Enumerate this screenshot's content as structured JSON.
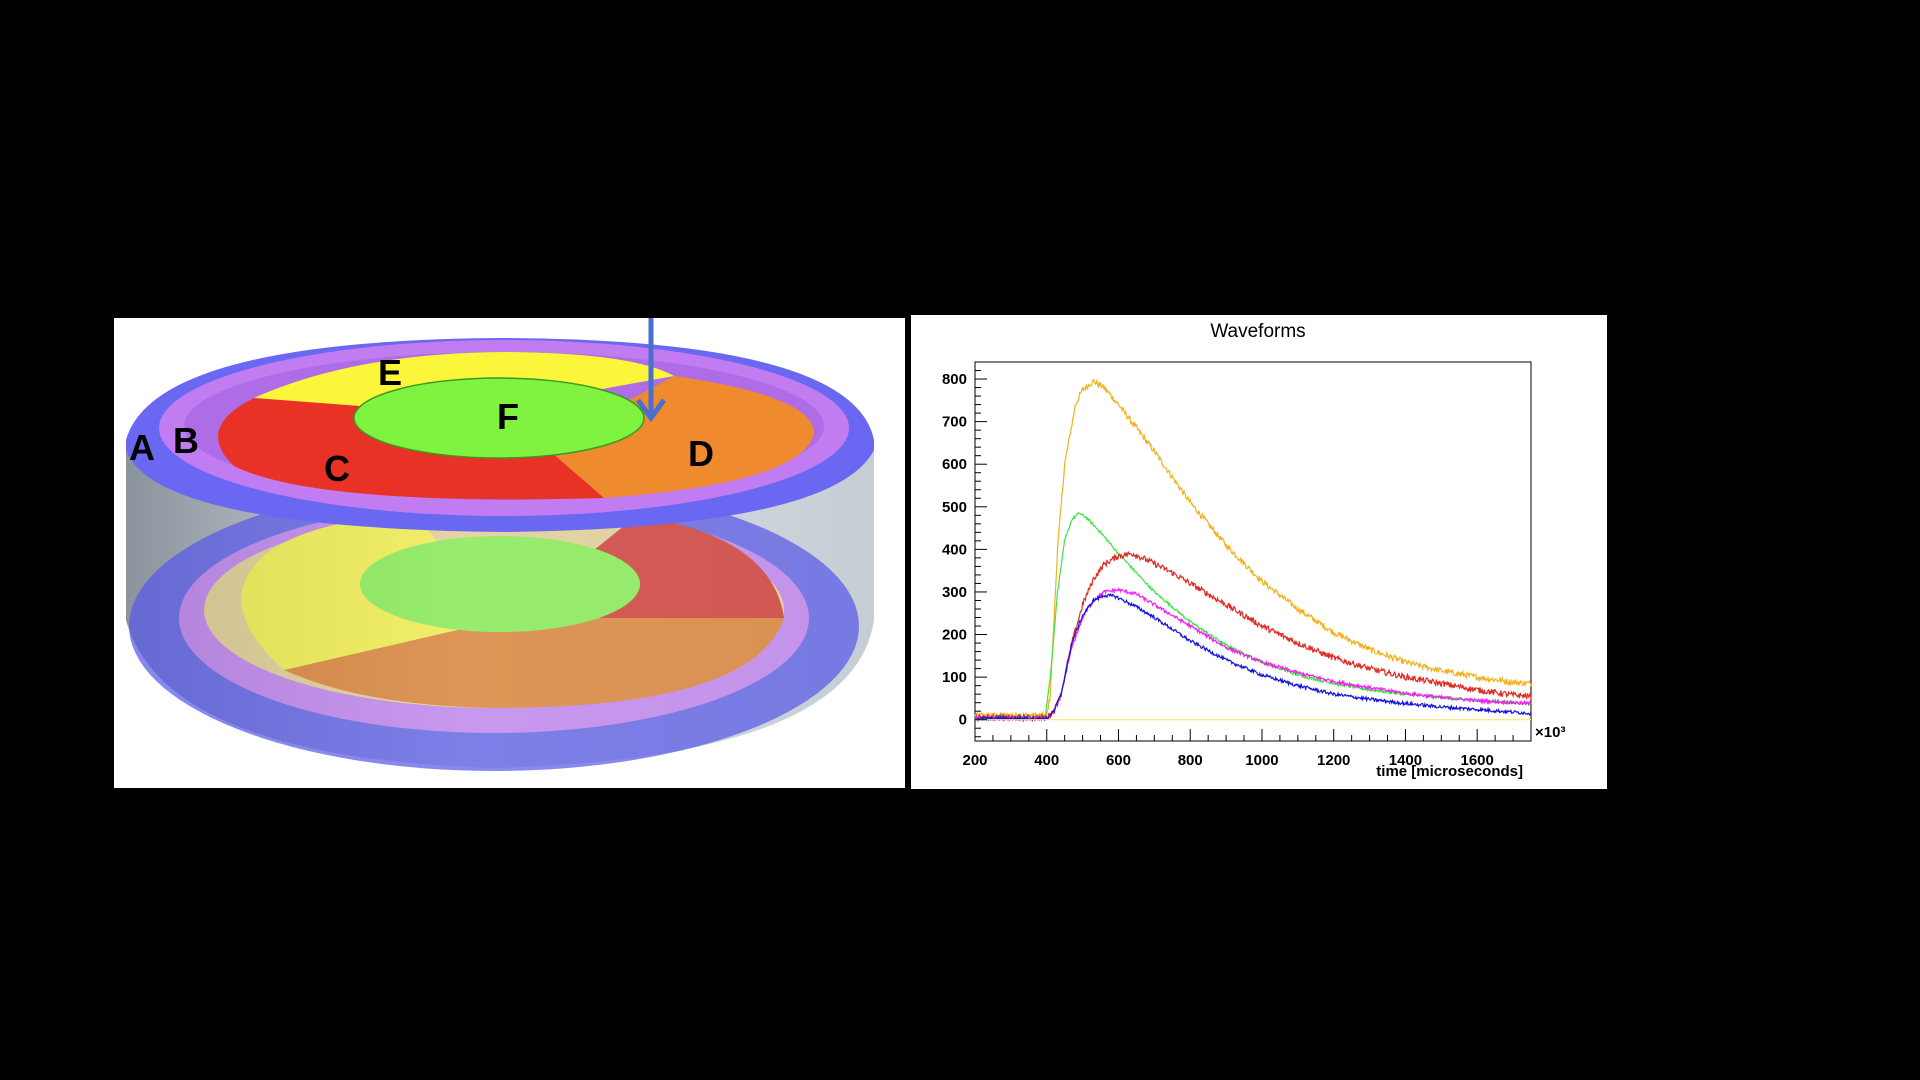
{
  "detector": {
    "segments": [
      {
        "id": "A",
        "label": "A",
        "color": "#6666f0"
      },
      {
        "id": "B",
        "label": "B",
        "color": "#c27cf2"
      },
      {
        "id": "C",
        "label": "C",
        "color": "#e83226"
      },
      {
        "id": "D",
        "label": "D",
        "color": "#f0882e"
      },
      {
        "id": "E",
        "label": "E",
        "color": "#fbf73f"
      },
      {
        "id": "F",
        "label": "F",
        "color": "#80f240"
      }
    ],
    "arrow_color": "#4a6fcf"
  },
  "chart_data": {
    "type": "line",
    "title": "Waveforms",
    "xlabel": "time [microseconds]",
    "x_multiplier": "×10³",
    "ylabel": "",
    "xlim": [
      200,
      1750
    ],
    "ylim": [
      -50,
      840
    ],
    "xticks": [
      200,
      400,
      600,
      800,
      1000,
      1200,
      1400,
      1600
    ],
    "yticks": [
      0,
      100,
      200,
      300,
      400,
      500,
      600,
      700,
      800
    ],
    "grid": false,
    "legend": "none",
    "series": [
      {
        "color": "#f2b21f",
        "noise": 7,
        "points": [
          [
            200,
            10
          ],
          [
            390,
            10
          ],
          [
            400,
            10
          ],
          [
            410,
            60
          ],
          [
            430,
            400
          ],
          [
            450,
            600
          ],
          [
            480,
            740
          ],
          [
            500,
            775
          ],
          [
            530,
            795
          ],
          [
            560,
            780
          ],
          [
            600,
            740
          ],
          [
            700,
            630
          ],
          [
            800,
            510
          ],
          [
            900,
            410
          ],
          [
            1000,
            325
          ],
          [
            1100,
            260
          ],
          [
            1200,
            205
          ],
          [
            1300,
            165
          ],
          [
            1400,
            135
          ],
          [
            1500,
            115
          ],
          [
            1600,
            100
          ],
          [
            1700,
            88
          ],
          [
            1750,
            85
          ]
        ]
      },
      {
        "color": "#3fe33f",
        "noise": 3,
        "points": [
          [
            200,
            5
          ],
          [
            395,
            5
          ],
          [
            410,
            100
          ],
          [
            430,
            300
          ],
          [
            450,
            420
          ],
          [
            470,
            470
          ],
          [
            490,
            485
          ],
          [
            510,
            475
          ],
          [
            550,
            440
          ],
          [
            600,
            390
          ],
          [
            700,
            300
          ],
          [
            800,
            230
          ],
          [
            900,
            175
          ],
          [
            1000,
            135
          ],
          [
            1100,
            105
          ],
          [
            1200,
            85
          ],
          [
            1300,
            70
          ],
          [
            1400,
            60
          ],
          [
            1500,
            52
          ],
          [
            1600,
            45
          ],
          [
            1700,
            40
          ],
          [
            1750,
            38
          ]
        ]
      },
      {
        "color": "#e02b24",
        "noise": 7,
        "points": [
          [
            200,
            5
          ],
          [
            400,
            5
          ],
          [
            420,
            20
          ],
          [
            440,
            60
          ],
          [
            470,
            180
          ],
          [
            500,
            270
          ],
          [
            530,
            330
          ],
          [
            560,
            365
          ],
          [
            600,
            385
          ],
          [
            640,
            390
          ],
          [
            680,
            375
          ],
          [
            750,
            345
          ],
          [
            800,
            320
          ],
          [
            900,
            270
          ],
          [
            1000,
            220
          ],
          [
            1100,
            180
          ],
          [
            1200,
            145
          ],
          [
            1300,
            120
          ],
          [
            1400,
            100
          ],
          [
            1500,
            85
          ],
          [
            1600,
            70
          ],
          [
            1700,
            58
          ],
          [
            1750,
            55
          ]
        ]
      },
      {
        "color": "#f21ef2",
        "noise": 4,
        "points": [
          [
            200,
            3
          ],
          [
            400,
            3
          ],
          [
            420,
            20
          ],
          [
            440,
            60
          ],
          [
            470,
            170
          ],
          [
            500,
            240
          ],
          [
            530,
            280
          ],
          [
            560,
            300
          ],
          [
            600,
            305
          ],
          [
            650,
            295
          ],
          [
            700,
            270
          ],
          [
            800,
            220
          ],
          [
            900,
            170
          ],
          [
            1000,
            135
          ],
          [
            1100,
            110
          ],
          [
            1200,
            90
          ],
          [
            1300,
            75
          ],
          [
            1400,
            62
          ],
          [
            1500,
            52
          ],
          [
            1600,
            45
          ],
          [
            1700,
            40
          ],
          [
            1750,
            38
          ]
        ]
      },
      {
        "color": "#1414dc",
        "noise": 4,
        "points": [
          [
            200,
            3
          ],
          [
            400,
            3
          ],
          [
            420,
            20
          ],
          [
            440,
            60
          ],
          [
            470,
            180
          ],
          [
            500,
            245
          ],
          [
            530,
            280
          ],
          [
            560,
            292
          ],
          [
            590,
            290
          ],
          [
            650,
            265
          ],
          [
            700,
            240
          ],
          [
            800,
            185
          ],
          [
            900,
            140
          ],
          [
            1000,
            105
          ],
          [
            1100,
            80
          ],
          [
            1200,
            60
          ],
          [
            1300,
            48
          ],
          [
            1400,
            38
          ],
          [
            1500,
            30
          ],
          [
            1600,
            24
          ],
          [
            1700,
            18
          ],
          [
            1750,
            15
          ]
        ]
      },
      {
        "color": "#ffe86a",
        "noise": 0,
        "points": [
          [
            200,
            0
          ],
          [
            1750,
            0
          ]
        ]
      }
    ]
  }
}
